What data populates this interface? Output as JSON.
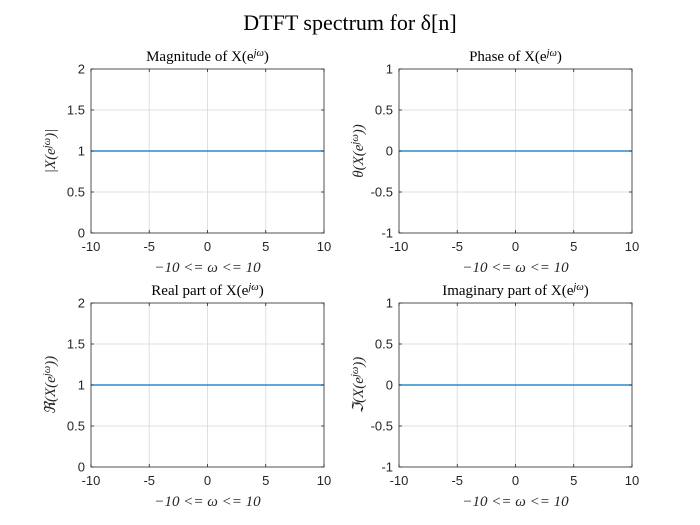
{
  "figure": {
    "suptitle": "DTFT spectrum for δ[n]"
  },
  "colors": {
    "line": "#0072BD",
    "grid": "#dfdfdf",
    "axis": "#262626",
    "background": "#ffffff"
  },
  "chart_data": [
    {
      "type": "line",
      "title": "Magnitude of X(e^{jω})",
      "xlabel": "−10 <= ω <= 10",
      "ylabel": "|X(e^{jω})|",
      "xlim": [
        -10,
        10
      ],
      "ylim": [
        0,
        2
      ],
      "xticks": [
        -10,
        -5,
        0,
        5,
        10
      ],
      "xtick_labels": [
        "-10",
        "-5",
        "0",
        "5",
        "10"
      ],
      "yticks": [
        0,
        0.5,
        1,
        1.5,
        2
      ],
      "ytick_labels": [
        "0",
        "0.5",
        "1",
        "1.5",
        "2"
      ],
      "grid": true,
      "series": [
        {
          "x": [
            -10,
            10
          ],
          "y": [
            1,
            1
          ]
        }
      ]
    },
    {
      "type": "line",
      "title": "Phase of X(e^{jω})",
      "xlabel": "−10 <= ω <= 10",
      "ylabel": "θ(X(e^{jω}))",
      "xlim": [
        -10,
        10
      ],
      "ylim": [
        -1,
        1
      ],
      "xticks": [
        -10,
        -5,
        0,
        5,
        10
      ],
      "xtick_labels": [
        "-10",
        "-5",
        "0",
        "5",
        "10"
      ],
      "yticks": [
        -1,
        -0.5,
        0,
        0.5,
        1
      ],
      "ytick_labels": [
        "-1",
        "-0.5",
        "0",
        "0.5",
        "1"
      ],
      "grid": true,
      "series": [
        {
          "x": [
            -10,
            10
          ],
          "y": [
            0,
            0
          ]
        }
      ]
    },
    {
      "type": "line",
      "title": "Real part of X(e^{jω})",
      "xlabel": "−10 <= ω <= 10",
      "ylabel": "ℜ(X(e^{jω}))",
      "xlim": [
        -10,
        10
      ],
      "ylim": [
        0,
        2
      ],
      "xticks": [
        -10,
        -5,
        0,
        5,
        10
      ],
      "xtick_labels": [
        "-10",
        "-5",
        "0",
        "5",
        "10"
      ],
      "yticks": [
        0,
        0.5,
        1,
        1.5,
        2
      ],
      "ytick_labels": [
        "0",
        "0.5",
        "1",
        "1.5",
        "2"
      ],
      "grid": true,
      "series": [
        {
          "x": [
            -10,
            10
          ],
          "y": [
            1,
            1
          ]
        }
      ]
    },
    {
      "type": "line",
      "title": "Imaginary part of X(e^{jω})",
      "xlabel": "−10 <= ω <= 10",
      "ylabel": "ℑ(X(e^{jω}))",
      "xlim": [
        -10,
        10
      ],
      "ylim": [
        -1,
        1
      ],
      "xticks": [
        -10,
        -5,
        0,
        5,
        10
      ],
      "xtick_labels": [
        "-10",
        "-5",
        "0",
        "5",
        "10"
      ],
      "yticks": [
        -1,
        -0.5,
        0,
        0.5,
        1
      ],
      "ytick_labels": [
        "-1",
        "-0.5",
        "0",
        "0.5",
        "1"
      ],
      "grid": true,
      "series": [
        {
          "x": [
            -10,
            10
          ],
          "y": [
            0,
            0
          ]
        }
      ]
    }
  ]
}
